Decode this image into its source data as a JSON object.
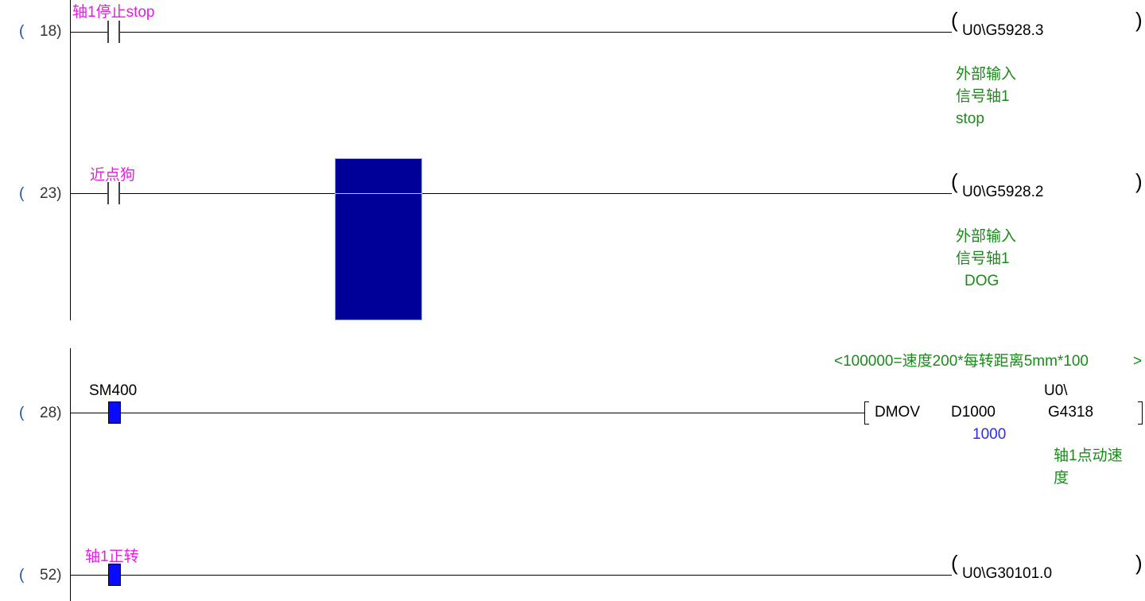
{
  "rungs": [
    {
      "step": "18",
      "contact_label": "轴1停止stop",
      "contact_state": "off",
      "coil": "U0\\G5928.3",
      "comment": [
        "外部输入",
        "信号轴1",
        "stop"
      ]
    },
    {
      "step": "23",
      "contact_label": "近点狗",
      "contact_state": "off",
      "coil": "U0\\G5928.2",
      "comment": [
        "外部输入",
        "信号轴1",
        "DOG"
      ]
    },
    {
      "step": "28",
      "contact_label": "SM400",
      "contact_state": "on",
      "statement": "<100000=速度200*每转距离5mm*100",
      "statement_end": ">",
      "instruction": "DMOV",
      "operand1": "D1000",
      "operand1_value": "1000",
      "operand2_prefix": "U0\\",
      "operand2": "G4318",
      "comment": [
        "轴1点动速",
        "度"
      ]
    },
    {
      "step": "52",
      "contact_label": "轴1正转",
      "contact_state": "on",
      "coil": "U0\\G30101.0"
    }
  ],
  "open_paren": "(",
  "colors": {
    "label": "#e020e0",
    "comment": "#1a8a1a",
    "value": "#2a2aff",
    "cursor": "#000099",
    "energized": "#0a0aff"
  }
}
